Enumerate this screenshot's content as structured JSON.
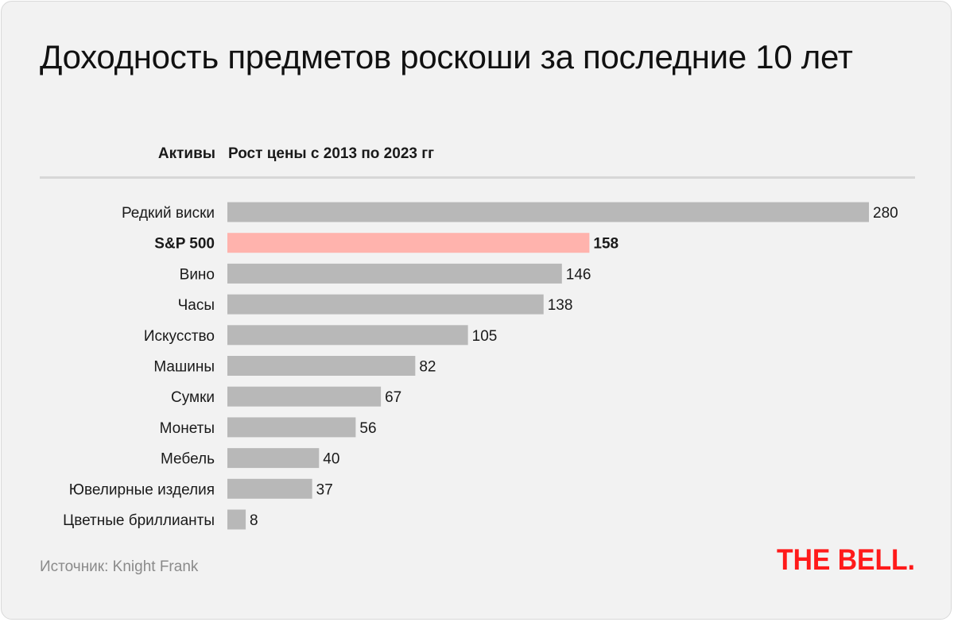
{
  "title": "Доходность предметов роскоши за последние 10 лет",
  "columns": {
    "assets": "Активы",
    "growth": "Рост цены с 2013 по 2023 гг"
  },
  "source": "Источник: Knight Frank",
  "logo_text": "THE BELL.",
  "colors": {
    "bar": "#b8b8b8",
    "highlight": "#ffb3ad",
    "logo": "#ff1a1a",
    "background": "#f2f2f2"
  },
  "chart_data": {
    "type": "bar",
    "orientation": "horizontal",
    "categories": [
      "Редкий виски",
      "S&P 500",
      "Вино",
      "Часы",
      "Искусство",
      "Машины",
      "Сумки",
      "Монеты",
      "Мебель",
      "Ювелирные изделия",
      "Цветные бриллианты"
    ],
    "values": [
      280,
      158,
      146,
      138,
      105,
      82,
      67,
      56,
      40,
      37,
      8
    ],
    "highlight": "S&P 500",
    "xlim": [
      0,
      280
    ],
    "grid": false,
    "legend": "none"
  }
}
